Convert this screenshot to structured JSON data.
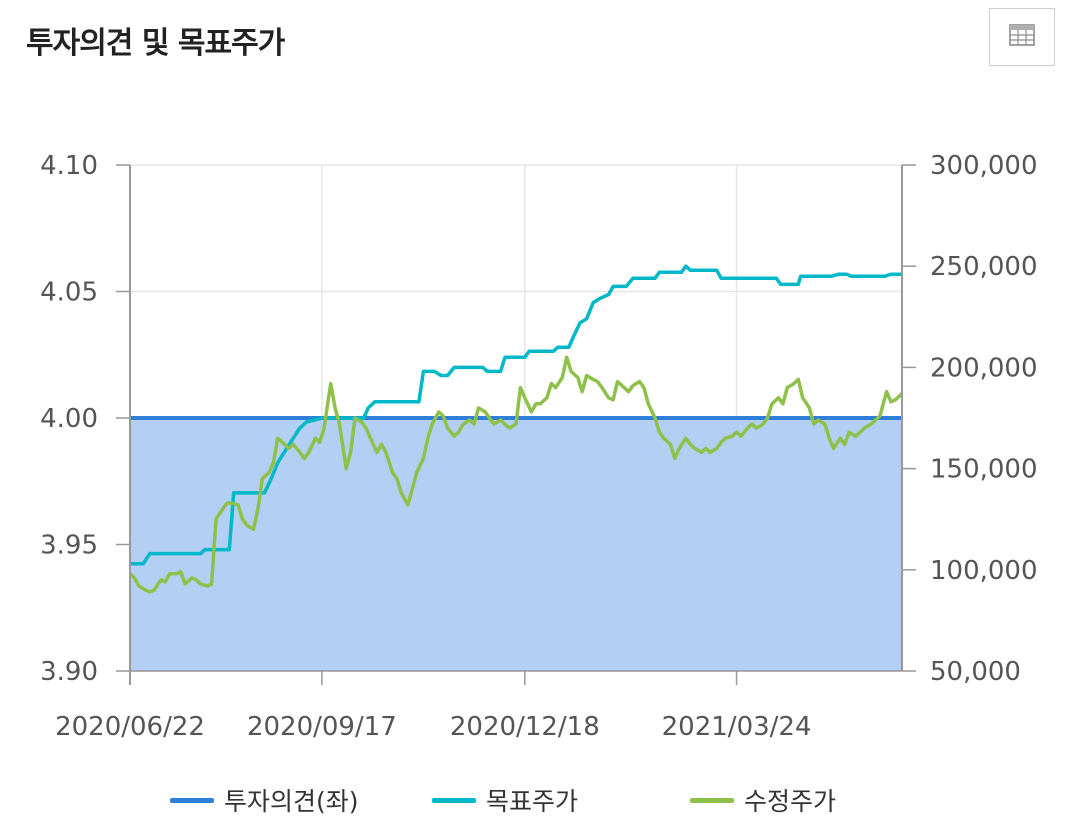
{
  "header": {
    "title": "투자의견 및 목표주가",
    "table_button_icon": "table-icon"
  },
  "colors": {
    "opinion": "#2f7ed8",
    "target": "#00b8c8",
    "adjusted": "#8fc04a",
    "fill": "#b3cff3"
  },
  "chart_data": {
    "type": "line",
    "title": "투자의견 및 목표주가",
    "x_tick_labels": [
      "2020/06/22",
      "2020/09/17",
      "2020/12/18",
      "2021/03/24"
    ],
    "x_range": [
      "2020/06/22",
      "2021/06/07"
    ],
    "y_left": {
      "min": 3.9,
      "max": 4.1,
      "ticks": [
        "4.10",
        "4.05",
        "4.00",
        "3.95",
        "3.90"
      ]
    },
    "y_right": {
      "min": 50000,
      "max": 300000,
      "ticks": [
        "300,000",
        "250,000",
        "200,000",
        "150,000",
        "100,000",
        "50,000"
      ]
    },
    "grid": true,
    "legend_position": "bottom",
    "series": [
      {
        "name": "투자의견(좌)",
        "axis": "left",
        "type": "area",
        "points": [
          [
            "2020/06/22",
            4.0
          ],
          [
            "2021/06/07",
            4.0
          ]
        ]
      },
      {
        "name": "목표주가",
        "axis": "right",
        "type": "step",
        "points": [
          [
            "2020/06/22",
            103000
          ],
          [
            "2020/06/28",
            103000
          ],
          [
            "2020/07/01",
            108000
          ],
          [
            "2020/07/24",
            108000
          ],
          [
            "2020/07/26",
            110000
          ],
          [
            "2020/08/06",
            110000
          ],
          [
            "2020/08/08",
            138000
          ],
          [
            "2020/08/22",
            138000
          ],
          [
            "2020/08/25",
            145000
          ],
          [
            "2020/08/28",
            153000
          ],
          [
            "2020/09/04",
            165000
          ],
          [
            "2020/09/07",
            170000
          ],
          [
            "2020/09/10",
            173000
          ],
          [
            "2020/09/17",
            175000
          ],
          [
            "2020/10/06",
            175000
          ],
          [
            "2020/10/08",
            180000
          ],
          [
            "2020/10/11",
            183000
          ],
          [
            "2020/10/31",
            183000
          ],
          [
            "2020/11/02",
            198000
          ],
          [
            "2020/11/07",
            198000
          ],
          [
            "2020/11/10",
            196000
          ],
          [
            "2020/11/13",
            196000
          ],
          [
            "2020/11/16",
            200000
          ],
          [
            "2020/11/29",
            200000
          ],
          [
            "2020/12/01",
            198000
          ],
          [
            "2020/12/07",
            198000
          ],
          [
            "2020/12/09",
            205000
          ],
          [
            "2020/12/18",
            205000
          ],
          [
            "2020/12/20",
            208000
          ],
          [
            "2020/12/31",
            208000
          ],
          [
            "2021/01/02",
            210000
          ],
          [
            "2021/01/07",
            210000
          ],
          [
            "2021/01/09",
            215000
          ],
          [
            "2021/01/12",
            222000
          ],
          [
            "2021/01/15",
            224000
          ],
          [
            "2021/01/18",
            232000
          ],
          [
            "2021/01/21",
            234000
          ],
          [
            "2021/01/25",
            236000
          ],
          [
            "2021/01/27",
            240000
          ],
          [
            "2021/02/02",
            240000
          ],
          [
            "2021/02/05",
            244000
          ],
          [
            "2021/02/15",
            244000
          ],
          [
            "2021/02/17",
            247000
          ],
          [
            "2021/02/27",
            247000
          ],
          [
            "2021/03/01",
            250000
          ],
          [
            "2021/03/03",
            248000
          ],
          [
            "2021/03/15",
            248000
          ],
          [
            "2021/03/17",
            244000
          ],
          [
            "2021/04/11",
            244000
          ],
          [
            "2021/04/13",
            241000
          ],
          [
            "2021/04/21",
            241000
          ],
          [
            "2021/04/22",
            245000
          ],
          [
            "2021/05/06",
            245000
          ],
          [
            "2021/05/09",
            246000
          ],
          [
            "2021/05/13",
            246000
          ],
          [
            "2021/05/15",
            245000
          ],
          [
            "2021/05/30",
            245000
          ],
          [
            "2021/06/02",
            246000
          ],
          [
            "2021/06/07",
            246000
          ]
        ]
      },
      {
        "name": "수정주가",
        "axis": "right",
        "type": "line",
        "points": [
          [
            "2020/06/22",
            98000
          ],
          [
            "2020/06/24",
            96000
          ],
          [
            "2020/06/26",
            92000
          ],
          [
            "2020/06/29",
            90000
          ],
          [
            "2020/07/01",
            89000
          ],
          [
            "2020/07/03",
            90000
          ],
          [
            "2020/07/06",
            95000
          ],
          [
            "2020/07/08",
            94000
          ],
          [
            "2020/07/10",
            98000
          ],
          [
            "2020/07/13",
            98000
          ],
          [
            "2020/07/15",
            99000
          ],
          [
            "2020/07/17",
            93000
          ],
          [
            "2020/07/20",
            96000
          ],
          [
            "2020/07/22",
            95000
          ],
          [
            "2020/07/24",
            93000
          ],
          [
            "2020/07/27",
            92000
          ],
          [
            "2020/07/29",
            93000
          ],
          [
            "2020/07/31",
            125000
          ],
          [
            "2020/08/03",
            130000
          ],
          [
            "2020/08/05",
            133000
          ],
          [
            "2020/08/07",
            133000
          ],
          [
            "2020/08/10",
            132000
          ],
          [
            "2020/08/12",
            125000
          ],
          [
            "2020/08/14",
            122000
          ],
          [
            "2020/08/17",
            120000
          ],
          [
            "2020/08/19",
            130000
          ],
          [
            "2020/08/21",
            145000
          ],
          [
            "2020/08/24",
            148000
          ],
          [
            "2020/08/26",
            153000
          ],
          [
            "2020/08/28",
            165000
          ],
          [
            "2020/08/31",
            162000
          ],
          [
            "2020/09/02",
            160000
          ],
          [
            "2020/09/04",
            162000
          ],
          [
            "2020/09/07",
            158000
          ],
          [
            "2020/09/09",
            155000
          ],
          [
            "2020/09/11",
            158000
          ],
          [
            "2020/09/14",
            165000
          ],
          [
            "2020/09/16",
            163000
          ],
          [
            "2020/09/18",
            170000
          ],
          [
            "2020/09/21",
            192000
          ],
          [
            "2020/09/23",
            180000
          ],
          [
            "2020/09/25",
            172000
          ],
          [
            "2020/09/28",
            150000
          ],
          [
            "2020/09/30",
            158000
          ],
          [
            "2020/10/02",
            175000
          ],
          [
            "2020/10/05",
            173000
          ],
          [
            "2020/10/07",
            170000
          ],
          [
            "2020/10/09",
            165000
          ],
          [
            "2020/10/12",
            158000
          ],
          [
            "2020/10/14",
            162000
          ],
          [
            "2020/10/16",
            158000
          ],
          [
            "2020/10/19",
            148000
          ],
          [
            "2020/10/21",
            145000
          ],
          [
            "2020/10/23",
            138000
          ],
          [
            "2020/10/26",
            132000
          ],
          [
            "2020/10/28",
            140000
          ],
          [
            "2020/10/30",
            148000
          ],
          [
            "2020/11/02",
            155000
          ],
          [
            "2020/11/04",
            165000
          ],
          [
            "2020/11/06",
            172000
          ],
          [
            "2020/11/09",
            178000
          ],
          [
            "2020/11/11",
            176000
          ],
          [
            "2020/11/13",
            170000
          ],
          [
            "2020/11/16",
            166000
          ],
          [
            "2020/11/18",
            168000
          ],
          [
            "2020/11/20",
            172000
          ],
          [
            "2020/11/23",
            174000
          ],
          [
            "2020/11/25",
            172000
          ],
          [
            "2020/11/27",
            180000
          ],
          [
            "2020/11/30",
            178000
          ],
          [
            "2020/12/02",
            175000
          ],
          [
            "2020/12/04",
            172000
          ],
          [
            "2020/12/07",
            174000
          ],
          [
            "2020/12/09",
            172000
          ],
          [
            "2020/12/11",
            170000
          ],
          [
            "2020/12/14",
            172000
          ],
          [
            "2020/12/16",
            190000
          ],
          [
            "2020/12/18",
            185000
          ],
          [
            "2020/12/21",
            178000
          ],
          [
            "2020/12/23",
            182000
          ],
          [
            "2020/12/25",
            182000
          ],
          [
            "2020/12/28",
            185000
          ],
          [
            "2020/12/30",
            192000
          ],
          [
            "2021/01/01",
            190000
          ],
          [
            "2021/01/04",
            195000
          ],
          [
            "2021/01/06",
            205000
          ],
          [
            "2021/01/08",
            198000
          ],
          [
            "2021/01/11",
            195000
          ],
          [
            "2021/01/13",
            188000
          ],
          [
            "2021/01/15",
            196000
          ],
          [
            "2021/01/18",
            194000
          ],
          [
            "2021/01/20",
            193000
          ],
          [
            "2021/01/22",
            190000
          ],
          [
            "2021/01/25",
            185000
          ],
          [
            "2021/01/27",
            184000
          ],
          [
            "2021/01/29",
            193000
          ],
          [
            "2021/02/01",
            190000
          ],
          [
            "2021/02/03",
            188000
          ],
          [
            "2021/02/05",
            191000
          ],
          [
            "2021/02/08",
            193000
          ],
          [
            "2021/02/10",
            190000
          ],
          [
            "2021/02/12",
            182000
          ],
          [
            "2021/02/15",
            175000
          ],
          [
            "2021/02/17",
            168000
          ],
          [
            "2021/02/19",
            165000
          ],
          [
            "2021/02/22",
            162000
          ],
          [
            "2021/02/24",
            155000
          ],
          [
            "2021/02/26",
            160000
          ],
          [
            "2021/03/01",
            165000
          ],
          [
            "2021/03/03",
            162000
          ],
          [
            "2021/03/05",
            160000
          ],
          [
            "2021/03/08",
            158000
          ],
          [
            "2021/03/10",
            160000
          ],
          [
            "2021/03/12",
            158000
          ],
          [
            "2021/03/15",
            160000
          ],
          [
            "2021/03/17",
            163000
          ],
          [
            "2021/03/19",
            165000
          ],
          [
            "2021/03/22",
            166000
          ],
          [
            "2021/03/24",
            168000
          ],
          [
            "2021/03/26",
            166000
          ],
          [
            "2021/03/29",
            170000
          ],
          [
            "2021/03/31",
            172000
          ],
          [
            "2021/04/02",
            170000
          ],
          [
            "2021/04/05",
            172000
          ],
          [
            "2021/04/07",
            175000
          ],
          [
            "2021/04/09",
            182000
          ],
          [
            "2021/04/12",
            185000
          ],
          [
            "2021/04/14",
            182000
          ],
          [
            "2021/04/16",
            190000
          ],
          [
            "2021/04/19",
            192000
          ],
          [
            "2021/04/21",
            194000
          ],
          [
            "2021/04/23",
            185000
          ],
          [
            "2021/04/26",
            180000
          ],
          [
            "2021/04/28",
            172000
          ],
          [
            "2021/04/30",
            174000
          ],
          [
            "2021/05/03",
            172000
          ],
          [
            "2021/05/05",
            165000
          ],
          [
            "2021/05/07",
            160000
          ],
          [
            "2021/05/10",
            165000
          ],
          [
            "2021/05/12",
            162000
          ],
          [
            "2021/05/14",
            168000
          ],
          [
            "2021/05/17",
            166000
          ],
          [
            "2021/05/19",
            168000
          ],
          [
            "2021/05/21",
            170000
          ],
          [
            "2021/05/24",
            172000
          ],
          [
            "2021/05/26",
            174000
          ],
          [
            "2021/05/28",
            176000
          ],
          [
            "2021/05/31",
            188000
          ],
          [
            "2021/06/02",
            183000
          ],
          [
            "2021/06/04",
            184000
          ],
          [
            "2021/06/07",
            187000
          ]
        ]
      }
    ]
  }
}
